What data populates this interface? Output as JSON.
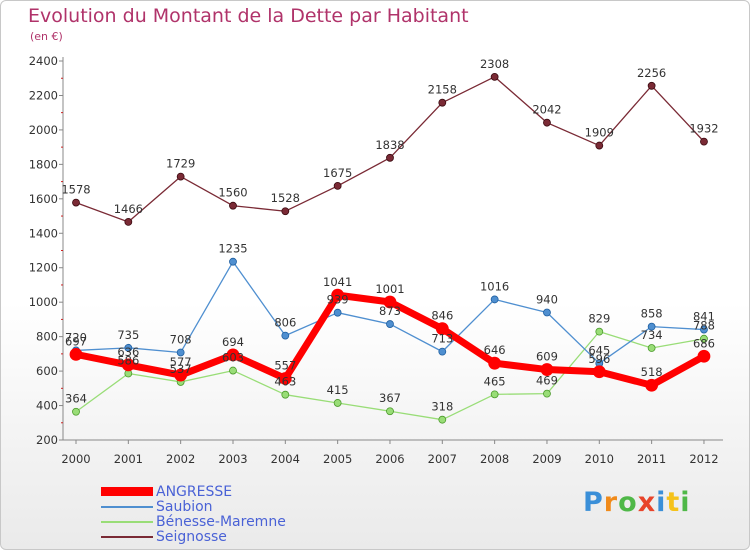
{
  "header": {
    "title": "Evolution du Montant de la Dette par Habitant",
    "subtitle": "(en €)"
  },
  "chart_data": {
    "type": "line",
    "x": [
      "2000",
      "2001",
      "2002",
      "2003",
      "2004",
      "2005",
      "2006",
      "2007",
      "2008",
      "2009",
      "2010",
      "2011",
      "2012"
    ],
    "ylim": [
      200,
      2400
    ],
    "yticks": [
      "200",
      "400",
      "600",
      "800",
      "1000",
      "1200",
      "1400",
      "1600",
      "1800",
      "2000",
      "2200",
      "2400"
    ],
    "grid": false,
    "legend_position": "bottom-left",
    "series": [
      {
        "name": "ANGRESSE",
        "color": "#ff0000",
        "values": [
          697,
          636,
          577,
          694,
          557,
          1041,
          1001,
          846,
          646,
          609,
          596,
          518,
          686
        ],
        "labels": [
          "697",
          "636",
          "577",
          "694",
          "557",
          "1041",
          "1001",
          "846",
          "646",
          "609",
          "596",
          "518",
          "686"
        ]
      },
      {
        "name": "Saubion",
        "color": "#4f8fd0",
        "values": [
          720,
          735,
          708,
          1235,
          806,
          939,
          873,
          713,
          1016,
          940,
          645,
          858,
          841
        ],
        "labels": [
          "720",
          "735",
          "708",
          "1235",
          "806",
          "939",
          "873",
          "713",
          "1016",
          "940",
          "645",
          "858",
          "841"
        ]
      },
      {
        "name": "Bénesse-Maremne",
        "color": "#99dd77",
        "values": [
          364,
          586,
          537,
          603,
          463,
          415,
          367,
          318,
          465,
          469,
          829,
          734,
          788
        ],
        "labels": [
          "364",
          "586",
          "537",
          "603",
          "463",
          "415",
          "367",
          "318",
          "465",
          "469",
          "829",
          "734",
          "788"
        ]
      },
      {
        "name": "Seignosse",
        "color": "#7a2a35",
        "values": [
          1578,
          1466,
          1729,
          1560,
          1528,
          1675,
          1838,
          2158,
          2308,
          2042,
          1909,
          2256,
          1932
        ],
        "labels": [
          "1578",
          "1466",
          "1729",
          "1560",
          "1528",
          "1675",
          "1838",
          "2158",
          "2308",
          "2042",
          "1909",
          "2256",
          "1932"
        ]
      }
    ]
  },
  "logo": {
    "letters": [
      "P",
      "r",
      "o",
      "x",
      "i",
      "t",
      "i"
    ],
    "colors": [
      "#3a8fd8",
      "#f08a1a",
      "#4fb848",
      "#e8442a",
      "#3a8fd8",
      "#f5c21a",
      "#4fb848"
    ]
  }
}
